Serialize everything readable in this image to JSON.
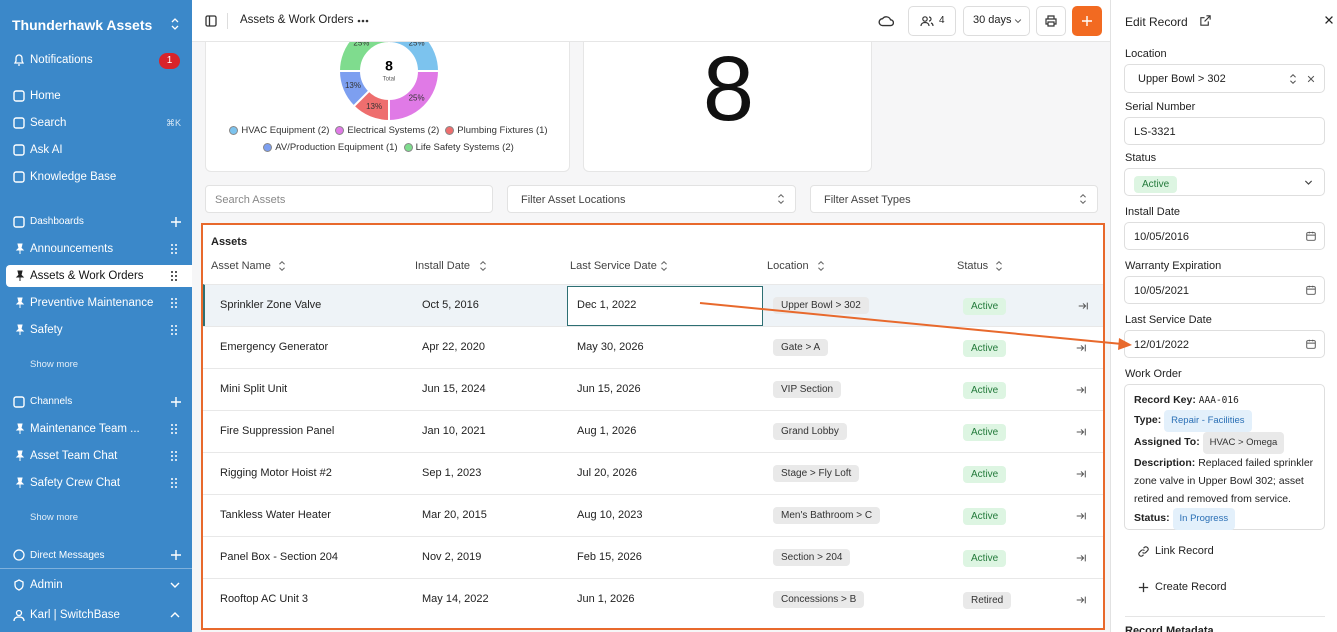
{
  "sidebar": {
    "workspace": "Thunderhawk Assets",
    "notifications": {
      "label": "Notifications",
      "count": 1
    },
    "nav": [
      {
        "label": "Home"
      },
      {
        "label": "Search",
        "shortcut": "⌘K"
      },
      {
        "label": "Ask AI"
      },
      {
        "label": "Knowledge Base"
      }
    ],
    "sections": [
      {
        "title": "Dashboards",
        "items": [
          "Announcements",
          "Assets & Work Orders",
          "Preventive Maintenance",
          "Safety"
        ],
        "more": "Show more"
      },
      {
        "title": "Channels",
        "items": [
          "Maintenance Team ...",
          "Asset Team Chat",
          "Safety Crew Chat"
        ],
        "more": "Show more"
      }
    ],
    "direct_messages": "Direct Messages",
    "admin": "Admin",
    "user": "Karl | SwitchBase"
  },
  "topbar": {
    "page_title": "Assets & Work Orders",
    "members": 4,
    "range": "30 days"
  },
  "donut": {
    "total": 8,
    "total_label": "Total",
    "segments": [
      {
        "label": "HVAC Equipment (2)",
        "value": 2,
        "percent_label": "25%",
        "color": "#7cc3ee"
      },
      {
        "label": "Electrical Systems (2)",
        "value": 2,
        "percent_label": "25%",
        "color": "#e07ae6"
      },
      {
        "label": "Plumbing Fixtures (1)",
        "value": 1,
        "percent_label": "13%",
        "color": "#ee6e6e"
      },
      {
        "label": "AV/Production Equipment (1)",
        "value": 1,
        "percent_label": "13%",
        "color": "#7d9ff0"
      },
      {
        "label": "Life Safety Systems (2)",
        "value": 2,
        "percent_label": "25%",
        "color": "#7fdc8e"
      }
    ]
  },
  "kpi": {
    "value": 8
  },
  "filters": [
    "Search Assets",
    "Filter Asset Locations",
    "Filter Asset Types"
  ],
  "table": {
    "title": "Assets",
    "columns": [
      "Asset Name",
      "Install Date",
      "Last Service Date",
      "Location",
      "Status"
    ],
    "rows": [
      [
        "Sprinkler Zone Valve",
        "Oct 5, 2016",
        "Dec 1, 2022",
        "Upper Bowl > 302",
        "Active"
      ],
      [
        "Emergency Generator",
        "Apr 22, 2020",
        "May 30, 2026",
        "Gate > A",
        "Active"
      ],
      [
        "Mini Split Unit",
        "Jun 15, 2024",
        "Jun 15, 2026",
        "VIP Section",
        "Active"
      ],
      [
        "Fire Suppression Panel",
        "Jan 10, 2021",
        "Aug 1, 2026",
        "Grand Lobby",
        "Active"
      ],
      [
        "Rigging Motor Hoist #2",
        "Sep 1, 2023",
        "Jul 20, 2026",
        "Stage > Fly Loft",
        "Active"
      ],
      [
        "Tankless Water Heater",
        "Mar 20, 2015",
        "Aug 10, 2023",
        "Men's Bathroom > C",
        "Active"
      ],
      [
        "Panel Box - Section 204",
        "Nov 2, 2019",
        "Feb 15, 2026",
        "Section > 204",
        "Active"
      ],
      [
        "Rooftop AC Unit 3",
        "May 14, 2022",
        "Jun 1, 2026",
        "Concessions > B",
        "Retired"
      ]
    ]
  },
  "panel": {
    "title": "Edit Record",
    "fields": [
      {
        "label": "Location",
        "value": "Upper Bowl > 302"
      },
      {
        "label": "Serial Number",
        "value": "LS-3321"
      },
      {
        "label": "Status",
        "value": "Active"
      },
      {
        "label": "Install Date",
        "value": "10/05/2016"
      },
      {
        "label": "Warranty Expiration",
        "value": "10/05/2021"
      },
      {
        "label": "Last Service Date",
        "value": "12/01/2022"
      }
    ],
    "work_order": {
      "title": "Work Order",
      "record_key": {
        "label": "Record Key:",
        "value": "AAA-016"
      },
      "type": {
        "label": "Type:",
        "value": "Repair - Facilities"
      },
      "assigned": {
        "label": "Assigned To:",
        "value": "HVAC > Omega"
      },
      "description": {
        "label": "Description:",
        "value": "Replaced failed sprinkler zone valve in Upper Bowl 302; asset retired and removed from service."
      },
      "status": {
        "label": "Status:",
        "value": "In Progress"
      }
    },
    "actions": [
      "Link Record",
      "Create Record"
    ],
    "metadata": "Record Metadata"
  }
}
